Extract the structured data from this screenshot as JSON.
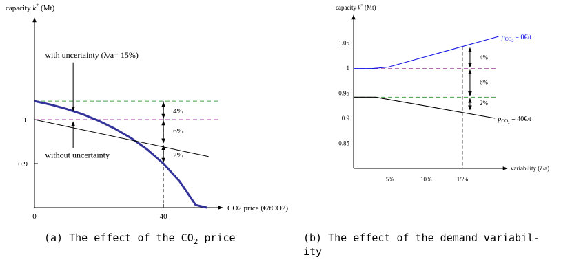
{
  "chart_data": [
    {
      "id": "a",
      "type": "line",
      "caption": "(a) The effect of the CO",
      "caption_sub": "2",
      "caption_tail": " price",
      "ylabel": "capacity ",
      "ylabel_k": "k",
      "ylabel_star": "*",
      "ylabel_unit": " (Mt)",
      "xlabel": "CO2 price (€/tCO2)",
      "xlim": [
        0,
        55
      ],
      "ylim": [
        0.8,
        1.2
      ],
      "x_ticks": [
        {
          "v": 0,
          "label": "0"
        },
        {
          "v": 40,
          "label": "40"
        }
      ],
      "y_ticks": [
        {
          "v": 1.0,
          "label": "1"
        },
        {
          "v": 0.9,
          "label": "0.9"
        }
      ],
      "series": [
        {
          "key": "with",
          "color": "#33339a",
          "points": [
            [
              0,
              1.042
            ],
            [
              5,
              1.034
            ],
            [
              10,
              1.024
            ],
            [
              15,
              1.012
            ],
            [
              20,
              0.997
            ],
            [
              25,
              0.979
            ],
            [
              30,
              0.958
            ],
            [
              35,
              0.932
            ],
            [
              40,
              0.9
            ],
            [
              45,
              0.86
            ],
            [
              50,
              0.806
            ],
            [
              53.5,
              0.8
            ]
          ]
        },
        {
          "key": "without",
          "color": "#000000",
          "points": [
            [
              0,
              1.0
            ],
            [
              54,
              0.916
            ]
          ]
        }
      ],
      "reference_lines": [
        {
          "y": 1.042,
          "color": "#44a044"
        },
        {
          "y": 1.0,
          "color": "#9c3c9c"
        }
      ],
      "marker_x": 40,
      "annotations": [
        {
          "text": "with uncertainty (λ/a= 15%)",
          "x": 2,
          "y": 1.141,
          "arrow_x": 12,
          "arrow_from": 1.13,
          "arrow_to": 1.02
        },
        {
          "text": "without uncertainty",
          "x": 2,
          "y": 0.913,
          "arrow_x": 12,
          "arrow_from": 0.935,
          "arrow_to": 0.995
        }
      ],
      "gaps": [
        {
          "label": "4%",
          "y1": 1.042,
          "y2": 1.0,
          "ly": 1.02
        },
        {
          "label": "6%",
          "y1": 1.0,
          "y2": 0.944,
          "ly": 0.975
        },
        {
          "label": "2%",
          "y1": 0.944,
          "y2": 0.9,
          "ly": 0.92
        }
      ]
    },
    {
      "id": "b",
      "type": "line",
      "caption": "(b) The effect of the demand variabil-",
      "caption2": "ity",
      "ylabel": "capacity ",
      "ylabel_k": "k",
      "ylabel_star": "*",
      "ylabel_unit": " (Mt)",
      "xlabel": "variability (λ/a)",
      "xlim": [
        0,
        20
      ],
      "ylim": [
        0.8,
        1.1
      ],
      "x_ticks": [
        {
          "v": 5,
          "label": "5%"
        },
        {
          "v": 10,
          "label": "10%"
        },
        {
          "v": 15,
          "label": "15%"
        }
      ],
      "y_ticks": [
        {
          "v": 1.05,
          "label": "1.05"
        },
        {
          "v": 1.0,
          "label": "1"
        },
        {
          "v": 0.95,
          "label": "0.95"
        },
        {
          "v": 0.9,
          "label": "0.9"
        },
        {
          "v": 0.85,
          "label": "0.85"
        }
      ],
      "series": [
        {
          "key": "p0",
          "color": "#1414e6",
          "label_pre": "p",
          "label_sub": "CO",
          "label_sub2": "2",
          "label_post": " = 0€/t",
          "points": [
            [
              0,
              0.999
            ],
            [
              2.5,
              0.999
            ],
            [
              4.8,
              1.002
            ],
            [
              20,
              1.063
            ]
          ]
        },
        {
          "key": "p40",
          "color": "#000000",
          "label_pre": "p",
          "label_sub": "CO",
          "label_sub2": "2",
          "label_post": " = 40€/t",
          "points": [
            [
              0,
              0.942
            ],
            [
              3,
              0.942
            ],
            [
              19.5,
              0.9
            ]
          ]
        }
      ],
      "reference_lines": [
        {
          "y": 0.999,
          "color": "#9c3c9c"
        },
        {
          "y": 0.942,
          "color": "#44a044"
        }
      ],
      "marker_x": 15,
      "gaps": [
        {
          "label": "4%",
          "y1": 1.043,
          "y2": 0.999,
          "ly": 1.021
        },
        {
          "label": "6%",
          "y1": 0.999,
          "y2": 0.942,
          "ly": 0.972
        },
        {
          "label": "2%",
          "y1": 0.942,
          "y2": 0.914,
          "ly": 0.93
        }
      ]
    }
  ]
}
